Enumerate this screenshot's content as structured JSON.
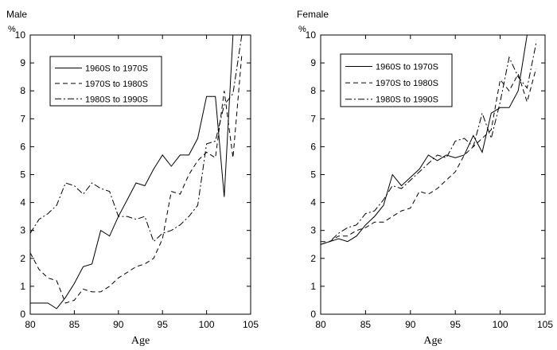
{
  "chart_data": [
    {
      "type": "line",
      "title": "Male",
      "ylabel": "%",
      "xlabel": "Age",
      "xlim": [
        80,
        105
      ],
      "ylim": [
        0,
        10
      ],
      "xticks": [
        "80",
        "85",
        "90",
        "95",
        "100",
        "105"
      ],
      "yticks": [
        "0",
        "1",
        "2",
        "3",
        "4",
        "5",
        "6",
        "7",
        "8",
        "9",
        "10"
      ],
      "grid": false,
      "legend_position": "top-left",
      "series": [
        {
          "name": "1960S to 1970S",
          "style": "solid",
          "x": [
            80,
            81,
            82,
            83,
            84,
            85,
            86,
            87,
            88,
            89,
            90,
            91,
            92,
            93,
            94,
            95,
            96,
            97,
            98,
            99,
            100,
            101,
            102,
            103,
            104
          ],
          "y": [
            0.4,
            0.4,
            0.4,
            0.2,
            0.6,
            1.1,
            1.7,
            1.8,
            3.0,
            2.8,
            3.5,
            4.1,
            4.7,
            4.6,
            5.2,
            5.7,
            5.3,
            5.7,
            5.7,
            6.3,
            7.8,
            7.8,
            4.2,
            10.0,
            11.5
          ]
        },
        {
          "name": "1970S to 1980S",
          "style": "dashed",
          "x": [
            80,
            81,
            82,
            83,
            84,
            85,
            86,
            87,
            88,
            89,
            90,
            91,
            92,
            93,
            94,
            95,
            96,
            97,
            98,
            99,
            100,
            101,
            102,
            103,
            104
          ],
          "y": [
            2.2,
            1.6,
            1.3,
            1.2,
            0.4,
            0.5,
            0.9,
            0.8,
            0.8,
            1.0,
            1.3,
            1.5,
            1.7,
            1.8,
            2.0,
            2.7,
            4.4,
            4.3,
            5.0,
            5.5,
            5.8,
            5.6,
            8.0,
            5.6,
            9.3
          ]
        },
        {
          "name": "1980S to 1990S",
          "style": "dashdot",
          "x": [
            80,
            81,
            82,
            83,
            84,
            85,
            86,
            87,
            88,
            89,
            90,
            91,
            92,
            93,
            94,
            95,
            96,
            97,
            98,
            99,
            100,
            101,
            102,
            103,
            104
          ],
          "y": [
            2.9,
            3.4,
            3.6,
            3.9,
            4.7,
            4.6,
            4.3,
            4.7,
            4.5,
            4.4,
            3.5,
            3.5,
            3.4,
            3.5,
            2.6,
            2.9,
            3.0,
            3.2,
            3.5,
            3.9,
            6.1,
            6.2,
            7.5,
            7.9,
            10.0
          ]
        }
      ]
    },
    {
      "type": "line",
      "title": "Female",
      "ylabel": "%",
      "xlabel": "Age",
      "xlim": [
        80,
        105
      ],
      "ylim": [
        0,
        10
      ],
      "xticks": [
        "80",
        "85",
        "90",
        "95",
        "100",
        "105"
      ],
      "yticks": [
        "0",
        "1",
        "2",
        "3",
        "4",
        "5",
        "6",
        "7",
        "8",
        "9",
        "10"
      ],
      "grid": false,
      "legend_position": "top-left",
      "series": [
        {
          "name": "1960S to 1970S",
          "style": "solid",
          "x": [
            80,
            81,
            82,
            83,
            84,
            85,
            86,
            87,
            88,
            89,
            90,
            91,
            92,
            93,
            94,
            95,
            96,
            97,
            98,
            99,
            100,
            101,
            102,
            103
          ],
          "y": [
            2.5,
            2.6,
            2.7,
            2.6,
            2.8,
            3.2,
            3.5,
            3.9,
            5.0,
            4.6,
            4.9,
            5.2,
            5.7,
            5.5,
            5.7,
            5.6,
            5.7,
            6.4,
            5.8,
            7.2,
            7.4,
            7.4,
            8.0,
            10.0
          ]
        },
        {
          "name": "1970S to 1980S",
          "style": "dashed",
          "x": [
            80,
            81,
            82,
            83,
            84,
            85,
            86,
            87,
            88,
            89,
            90,
            91,
            92,
            93,
            94,
            95,
            96,
            97,
            98,
            99,
            100,
            101,
            102,
            103,
            104
          ],
          "y": [
            2.6,
            2.6,
            2.8,
            2.8,
            3.0,
            3.1,
            3.3,
            3.3,
            3.5,
            3.7,
            3.8,
            4.4,
            4.3,
            4.5,
            4.8,
            5.1,
            5.7,
            6.0,
            6.3,
            6.6,
            8.4,
            8.0,
            8.6,
            7.6,
            8.8
          ]
        },
        {
          "name": "1980S to 1990S",
          "style": "dashdot",
          "x": [
            80,
            81,
            82,
            83,
            84,
            85,
            86,
            87,
            88,
            89,
            90,
            91,
            92,
            93,
            94,
            95,
            96,
            97,
            98,
            99,
            100,
            101,
            102,
            103,
            104
          ],
          "y": [
            2.5,
            2.6,
            2.9,
            3.1,
            3.2,
            3.6,
            3.7,
            4.1,
            4.6,
            4.5,
            4.8,
            5.1,
            5.4,
            5.7,
            5.6,
            6.2,
            6.3,
            6.0,
            7.2,
            6.3,
            7.6,
            9.2,
            8.5,
            8.1,
            9.7
          ]
        }
      ]
    }
  ]
}
